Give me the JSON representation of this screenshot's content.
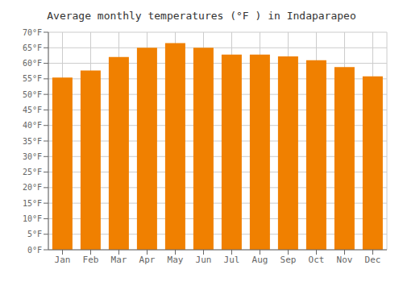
{
  "chart_data": {
    "type": "bar",
    "title": "Average monthly temperatures (°F ) in Indaparapeo",
    "categories": [
      "Jan",
      "Feb",
      "Mar",
      "Apr",
      "May",
      "Jun",
      "Jul",
      "Aug",
      "Sep",
      "Oct",
      "Nov",
      "Dec"
    ],
    "values": [
      55.4,
      57.7,
      62.0,
      65.0,
      66.5,
      65.0,
      62.8,
      62.8,
      62.2,
      61.0,
      58.8,
      55.8
    ],
    "color": "#F08000",
    "ylim": [
      0,
      70
    ],
    "yticks": [
      {
        "value": 0,
        "label": "0°F"
      },
      {
        "value": 5,
        "label": "5°F"
      },
      {
        "value": 10,
        "label": "10°F"
      },
      {
        "value": 15,
        "label": "15°F"
      },
      {
        "value": 20,
        "label": "20°F"
      },
      {
        "value": 25,
        "label": "25°F"
      },
      {
        "value": 30,
        "label": "30°F"
      },
      {
        "value": 35,
        "label": "35°F"
      },
      {
        "value": 40,
        "label": "40°F"
      },
      {
        "value": 45,
        "label": "45°F"
      },
      {
        "value": 50,
        "label": "50°F"
      },
      {
        "value": 55,
        "label": "55°F"
      },
      {
        "value": 60,
        "label": "60°F"
      },
      {
        "value": 65,
        "label": "65°F"
      },
      {
        "value": 70,
        "label": "70°F"
      }
    ],
    "grid": true
  }
}
